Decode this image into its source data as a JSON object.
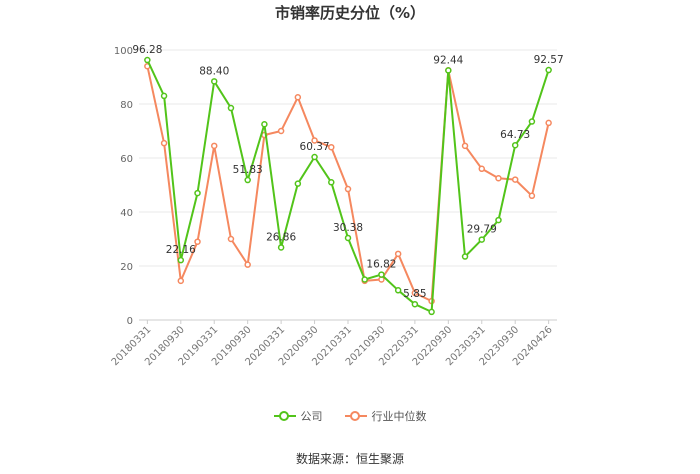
{
  "title": "市销率历史分位（%）",
  "source": "数据来源：恒生聚源",
  "colors": {
    "company": "#52c41a",
    "industry": "#f5885f",
    "grid": "#e8e8e8",
    "axis": "#999999"
  },
  "chart_data": {
    "type": "line",
    "title": "市销率历史分位（%）",
    "ylim": [
      0,
      100
    ],
    "yticks": [
      0,
      20,
      40,
      60,
      80,
      100
    ],
    "grid": true,
    "legend": "bottom",
    "x": [
      "20180331",
      "20180630",
      "20180930",
      "20181231",
      "20190331",
      "20190630",
      "20190930",
      "20191231",
      "20200331",
      "20200630",
      "20200930",
      "20201231",
      "20210331",
      "20210630",
      "20210930",
      "20211231",
      "20220331",
      "20220630",
      "20220930",
      "20221231",
      "20230331",
      "20230630",
      "20230930",
      "20231231",
      "20240426"
    ],
    "xtick_labels": [
      "20180331",
      "20180930",
      "20190331",
      "20190930",
      "20200331",
      "20200930",
      "20210331",
      "20210930",
      "20220331",
      "20220930",
      "20230331",
      "20230930",
      "20240426"
    ],
    "series": [
      {
        "name": "公司",
        "color": "#52c41a",
        "values": [
          96.28,
          83,
          22.16,
          47,
          88.4,
          78.5,
          51.83,
          72.5,
          26.86,
          50.5,
          60.37,
          51,
          30.38,
          15,
          16.82,
          11,
          5.85,
          3,
          92.44,
          23.5,
          29.79,
          37,
          64.73,
          73.5,
          92.57
        ]
      },
      {
        "name": "行业中位数",
        "color": "#f5885f",
        "values": [
          94,
          65.5,
          14.5,
          29,
          64.5,
          30,
          20.5,
          68.5,
          70,
          82.5,
          66.5,
          64,
          48.5,
          14.5,
          15,
          24.5,
          10,
          7,
          92.5,
          64.5,
          56,
          52.5,
          52,
          46,
          73
        ]
      }
    ],
    "point_labels": [
      {
        "series": 0,
        "index": 0,
        "text": "96.28"
      },
      {
        "series": 0,
        "index": 2,
        "text": "22.16"
      },
      {
        "series": 0,
        "index": 4,
        "text": "88.40"
      },
      {
        "series": 0,
        "index": 6,
        "text": "51.83"
      },
      {
        "series": 0,
        "index": 8,
        "text": "26.86"
      },
      {
        "series": 0,
        "index": 10,
        "text": "60.37"
      },
      {
        "series": 0,
        "index": 12,
        "text": "30.38"
      },
      {
        "series": 0,
        "index": 14,
        "text": "16.82"
      },
      {
        "series": 0,
        "index": 16,
        "text": "5.85"
      },
      {
        "series": 0,
        "index": 18,
        "text": "92.44"
      },
      {
        "series": 0,
        "index": 20,
        "text": "29.79"
      },
      {
        "series": 0,
        "index": 22,
        "text": "64.73"
      },
      {
        "series": 0,
        "index": 24,
        "text": "92.57"
      }
    ]
  }
}
